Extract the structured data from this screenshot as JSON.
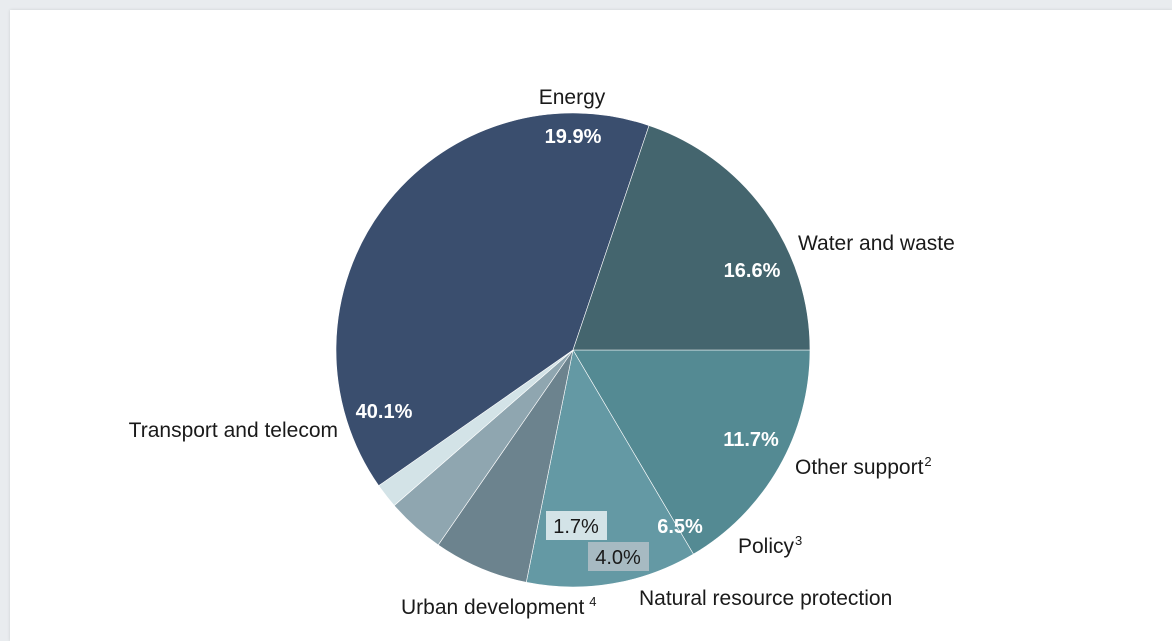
{
  "chart_data": {
    "type": "pie",
    "start_angle_deg": 0,
    "direction": "clockwise",
    "slices": [
      {
        "label": "Water and waste",
        "sup": "",
        "value": 16.6,
        "value_label": "16.6%",
        "color": "#548a93"
      },
      {
        "label": "Other support",
        "sup": "2",
        "value": 11.7,
        "value_label": "11.7%",
        "color": "#6499a4"
      },
      {
        "label": "Policy",
        "sup": "3",
        "value": 6.5,
        "value_label": "6.5%",
        "color": "#6c838e"
      },
      {
        "label": "Natural resource protection",
        "sup": "",
        "value": 4.0,
        "value_label": "4.0%",
        "color": "#8fa6b0"
      },
      {
        "label": "Urban development",
        "sup": "4",
        "value": 1.7,
        "value_label": "1.7%",
        "color": "#d3e3e7"
      },
      {
        "label": "Transport and telecom",
        "sup": "",
        "value": 40.1,
        "value_label": "40.1%",
        "color": "#3a4e6e"
      },
      {
        "label": "Energy",
        "sup": "",
        "value": 19.9,
        "value_label": "19.9%",
        "color": "#44656e"
      }
    ]
  }
}
